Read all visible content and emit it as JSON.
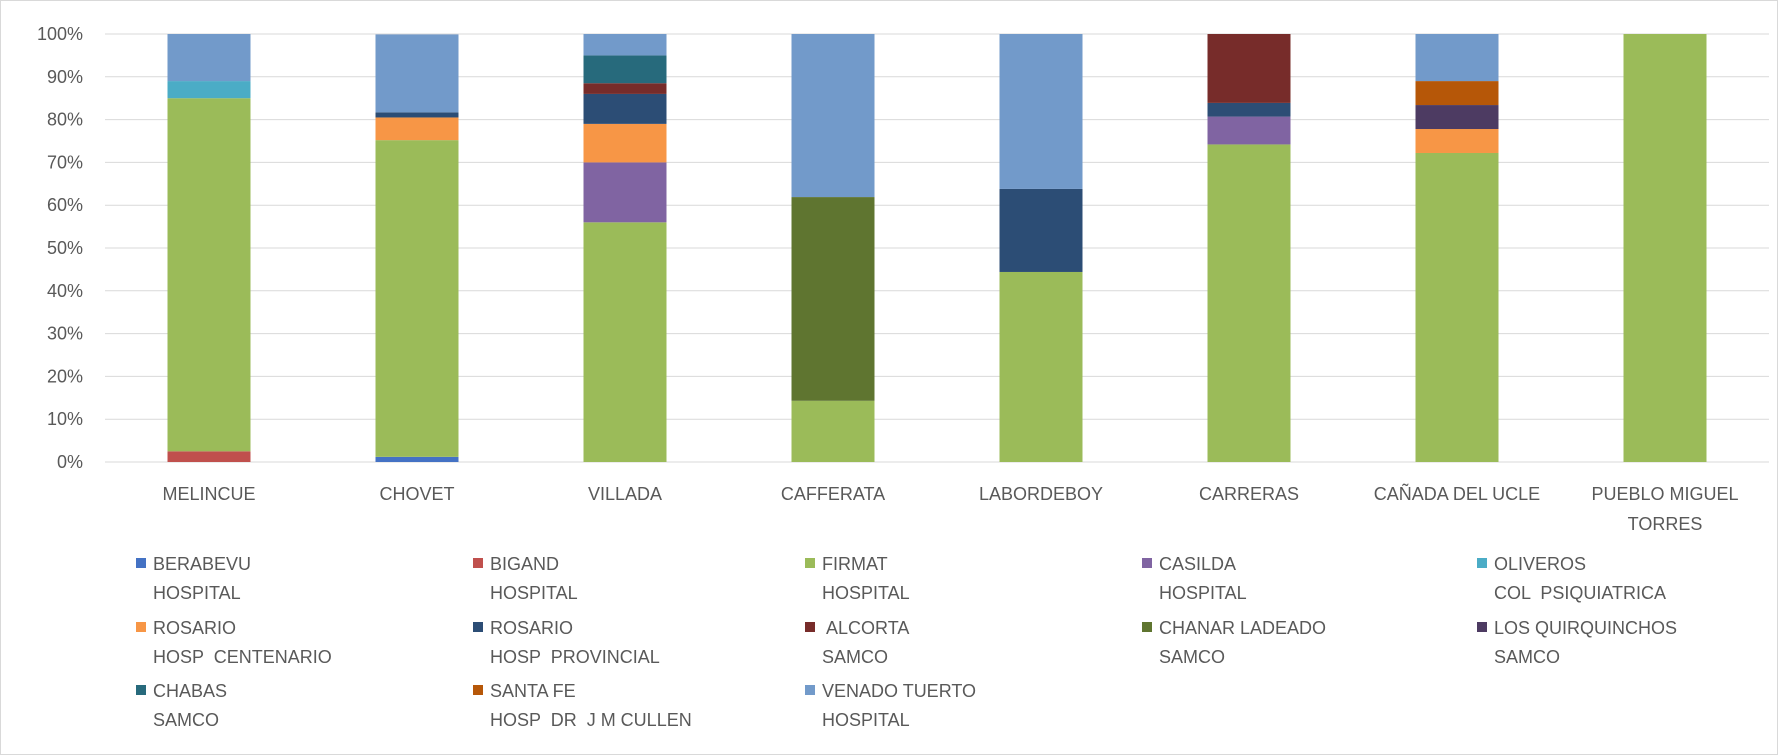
{
  "chart_data": {
    "type": "stacked_bar_100",
    "categories": [
      "MELINCUE",
      "CHOVET",
      "VILLADA",
      "CAFFERATA",
      "LABORDEBOY",
      "CARRERAS",
      "CAÑADA DEL UCLE",
      "PUEBLO MIGUEL\nTORRES"
    ],
    "ylim": [
      0,
      100
    ],
    "yticks": [
      {
        "value": 0,
        "label": "0%"
      },
      {
        "value": 10,
        "label": "10%"
      },
      {
        "value": 20,
        "label": "20%"
      },
      {
        "value": 30,
        "label": "30%"
      },
      {
        "value": 40,
        "label": "40%"
      },
      {
        "value": 50,
        "label": "50%"
      },
      {
        "value": 60,
        "label": "60%"
      },
      {
        "value": 70,
        "label": "70%"
      },
      {
        "value": 80,
        "label": "80%"
      },
      {
        "value": 90,
        "label": "90%"
      },
      {
        "value": 100,
        "label": "100%"
      }
    ],
    "grid": true,
    "legend": "bottom",
    "series": [
      {
        "name": "BERABEVU\nHOSPITAL",
        "color": "#4472c4",
        "values": [
          0,
          1.2,
          0,
          0,
          0,
          0,
          0,
          0
        ]
      },
      {
        "name": "BIGAND\nHOSPITAL",
        "color": "#c0504d",
        "values": [
          2.5,
          0,
          0,
          0,
          0,
          0,
          0,
          0
        ]
      },
      {
        "name": "FIRMAT\nHOSPITAL",
        "color": "#9bbb59",
        "values": [
          82.5,
          74,
          56,
          14.3,
          44.4,
          74.2,
          72.2,
          100
        ]
      },
      {
        "name": "CASILDA\nHOSPITAL",
        "color": "#8064a2",
        "values": [
          0,
          0,
          14,
          0,
          0,
          6.5,
          0,
          0
        ]
      },
      {
        "name": "OLIVEROS\nCOL  PSIQUIATRICA",
        "color": "#4bacc6",
        "values": [
          4,
          0,
          0,
          0,
          0,
          0,
          0,
          0
        ]
      },
      {
        "name": "ROSARIO\nHOSP  CENTENARIO",
        "color": "#f79646",
        "values": [
          0,
          5.3,
          9,
          0,
          0,
          0,
          5.6,
          0
        ]
      },
      {
        "name": "ROSARIO\nHOSP  PROVINCIAL",
        "color": "#2c4d75",
        "values": [
          0,
          1.2,
          7,
          0,
          19.4,
          3.2,
          0,
          0
        ]
      },
      {
        "name": " ALCORTA\nSAMCO",
        "color": "#772c2a",
        "values": [
          0,
          0,
          2.5,
          0,
          0,
          16.1,
          0,
          0
        ]
      },
      {
        "name": "CHANAR LADEADO\nSAMCO",
        "color": "#5f7530",
        "values": [
          0,
          0,
          0,
          47.6,
          0,
          0,
          0,
          0
        ]
      },
      {
        "name": "LOS QUIRQUINCHOS\nSAMCO",
        "color": "#4d3b62",
        "values": [
          0,
          0,
          0,
          0,
          0,
          0,
          5.6,
          0
        ]
      },
      {
        "name": "CHABAS\nSAMCO",
        "color": "#276a7c",
        "values": [
          0,
          0,
          6.5,
          0,
          0,
          0,
          0,
          0
        ]
      },
      {
        "name": "SANTA FE\nHOSP  DR  J M CULLEN",
        "color": "#b65708",
        "values": [
          0,
          0,
          0,
          0,
          0,
          0,
          5.6,
          0
        ]
      },
      {
        "name": "VENADO TUERTO\nHOSPITAL",
        "color": "#729aca",
        "values": [
          11,
          18.2,
          5,
          38.1,
          36.2,
          0,
          11,
          0
        ]
      }
    ]
  }
}
